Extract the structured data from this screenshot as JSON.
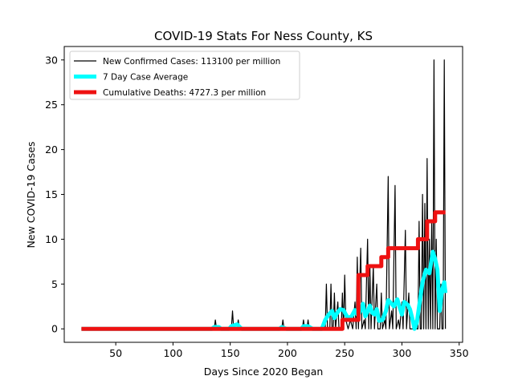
{
  "chart_data": {
    "type": "line",
    "title": "COVID-19 Stats For Ness County, KS",
    "xlabel": "Days Since 2020 Began",
    "ylabel": "New COVID-19 Cases",
    "xlim": [
      5,
      353
    ],
    "ylim": [
      -1.5,
      31.5
    ],
    "xticks": [
      50,
      100,
      150,
      200,
      250,
      300,
      350
    ],
    "yticks": [
      0,
      5,
      10,
      15,
      20,
      25,
      30
    ],
    "grid": false,
    "legend_position": "upper-left",
    "series": [
      {
        "name": "New Confirmed Cases: 113100 per million",
        "color": "#000000",
        "points": [
          [
            20,
            0
          ],
          [
            136,
            0
          ],
          [
            137,
            1
          ],
          [
            138,
            0
          ],
          [
            151,
            0
          ],
          [
            152,
            2
          ],
          [
            153,
            0
          ],
          [
            156,
            0
          ],
          [
            157,
            1
          ],
          [
            158,
            0
          ],
          [
            195,
            0
          ],
          [
            196,
            1
          ],
          [
            197,
            0
          ],
          [
            213,
            0
          ],
          [
            214,
            1
          ],
          [
            215,
            0
          ],
          [
            217,
            0
          ],
          [
            218,
            1
          ],
          [
            219,
            0
          ],
          [
            233,
            0
          ],
          [
            234,
            5
          ],
          [
            235,
            0
          ],
          [
            237,
            0
          ],
          [
            238,
            5
          ],
          [
            239,
            0
          ],
          [
            240,
            0
          ],
          [
            241,
            4
          ],
          [
            242,
            0
          ],
          [
            244,
            3
          ],
          [
            245,
            0
          ],
          [
            247,
            0
          ],
          [
            248,
            4
          ],
          [
            249,
            0
          ],
          [
            250,
            6
          ],
          [
            251,
            1
          ],
          [
            253,
            0
          ],
          [
            255,
            1
          ],
          [
            257,
            0
          ],
          [
            259,
            3
          ],
          [
            260,
            0
          ],
          [
            261,
            8
          ],
          [
            262,
            0
          ],
          [
            264,
            9
          ],
          [
            265,
            0
          ],
          [
            267,
            1
          ],
          [
            268,
            0
          ],
          [
            270,
            10
          ],
          [
            271,
            0
          ],
          [
            272,
            7
          ],
          [
            273,
            0
          ],
          [
            275,
            7
          ],
          [
            276,
            0
          ],
          [
            278,
            5
          ],
          [
            279,
            0
          ],
          [
            281,
            0
          ],
          [
            282,
            4
          ],
          [
            283,
            0
          ],
          [
            285,
            1
          ],
          [
            286,
            0
          ],
          [
            288,
            17
          ],
          [
            289,
            0
          ],
          [
            291,
            2
          ],
          [
            292,
            0
          ],
          [
            294,
            16
          ],
          [
            295,
            0
          ],
          [
            297,
            1
          ],
          [
            298,
            0
          ],
          [
            300,
            3
          ],
          [
            301,
            0
          ],
          [
            303,
            11
          ],
          [
            304,
            0
          ],
          [
            306,
            4
          ],
          [
            307,
            0
          ],
          [
            309,
            0
          ],
          [
            311,
            0
          ],
          [
            312,
            1
          ],
          [
            313,
            0
          ],
          [
            314,
            0
          ],
          [
            315,
            12
          ],
          [
            316,
            0
          ],
          [
            317,
            0
          ],
          [
            318,
            15
          ],
          [
            319,
            0
          ],
          [
            320,
            14
          ],
          [
            321,
            0
          ],
          [
            322,
            19
          ],
          [
            323,
            0
          ],
          [
            324,
            10
          ],
          [
            325,
            0
          ],
          [
            326,
            12
          ],
          [
            327,
            0
          ],
          [
            328,
            30
          ],
          [
            329,
            0
          ],
          [
            330,
            10
          ],
          [
            331,
            0
          ],
          [
            333,
            0
          ],
          [
            334,
            5
          ],
          [
            335,
            0
          ],
          [
            336,
            0
          ],
          [
            337,
            30
          ],
          [
            338,
            0
          ]
        ]
      },
      {
        "name": "7 Day Case Average",
        "color": "#00ffff",
        "points": [
          [
            20,
            0
          ],
          [
            134,
            0
          ],
          [
            136,
            0.2
          ],
          [
            140,
            0.2
          ],
          [
            142,
            0
          ],
          [
            149,
            0
          ],
          [
            151,
            0.3
          ],
          [
            156,
            0.5
          ],
          [
            160,
            0
          ],
          [
            193,
            0
          ],
          [
            195,
            0.2
          ],
          [
            199,
            0
          ],
          [
            212,
            0
          ],
          [
            214,
            0.3
          ],
          [
            218,
            0.3
          ],
          [
            222,
            0
          ],
          [
            230,
            0
          ],
          [
            233,
            1
          ],
          [
            236,
            1.6
          ],
          [
            239,
            2
          ],
          [
            241,
            1.2
          ],
          [
            243,
            1.7
          ],
          [
            246,
            2.2
          ],
          [
            249,
            2.1
          ],
          [
            251,
            1.6
          ],
          [
            253,
            1.2
          ],
          [
            256,
            1.4
          ],
          [
            259,
            2.1
          ],
          [
            261,
            1.6
          ],
          [
            263,
            1.8
          ],
          [
            266,
            2.8
          ],
          [
            268,
            1.4
          ],
          [
            270,
            1.9
          ],
          [
            272,
            2.6
          ],
          [
            274,
            1.8
          ],
          [
            276,
            1.6
          ],
          [
            278,
            2.2
          ],
          [
            280,
            0.9
          ],
          [
            283,
            1
          ],
          [
            286,
            2
          ],
          [
            288,
            3.2
          ],
          [
            291,
            2.8
          ],
          [
            293,
            2.5
          ],
          [
            296,
            3.3
          ],
          [
            298,
            2.4
          ],
          [
            300,
            1.6
          ],
          [
            302,
            3
          ],
          [
            305,
            2.7
          ],
          [
            307,
            2.2
          ],
          [
            309,
            1.2
          ],
          [
            311,
            0
          ],
          [
            313,
            0.7
          ],
          [
            315,
            2.5
          ],
          [
            318,
            5.2
          ],
          [
            321,
            6.6
          ],
          [
            324,
            6.2
          ],
          [
            327,
            8.6
          ],
          [
            329,
            7.8
          ],
          [
            331,
            6.6
          ],
          [
            333,
            2
          ],
          [
            335,
            4.3
          ],
          [
            337,
            5.2
          ],
          [
            338,
            4
          ]
        ]
      },
      {
        "name": "Cumulative Deaths: 4727.3 per million",
        "color": "#ee1111",
        "points": [
          [
            20,
            0
          ],
          [
            248,
            0
          ],
          [
            248,
            1
          ],
          [
            262,
            1
          ],
          [
            262,
            6
          ],
          [
            270,
            6
          ],
          [
            270,
            7
          ],
          [
            282,
            7
          ],
          [
            282,
            8
          ],
          [
            288,
            8
          ],
          [
            288,
            9
          ],
          [
            314,
            9
          ],
          [
            314,
            10
          ],
          [
            322,
            10
          ],
          [
            322,
            12
          ],
          [
            329,
            12
          ],
          [
            329,
            13
          ],
          [
            338,
            13
          ]
        ]
      }
    ]
  }
}
